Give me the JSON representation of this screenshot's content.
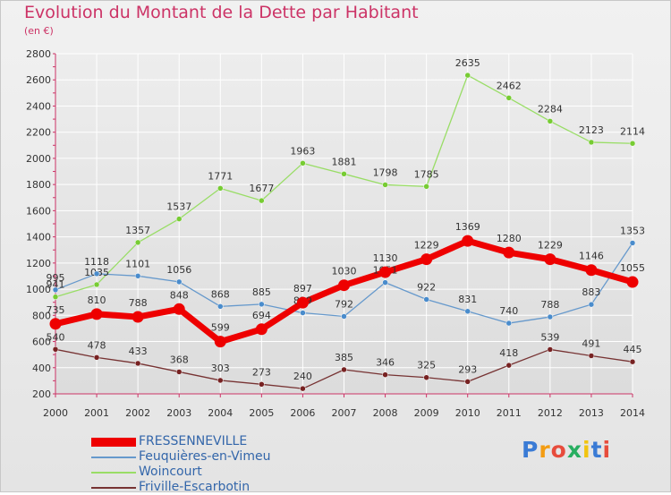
{
  "title": "Evolution du Montant de la Dette par Habitant",
  "subtitle": "(en €)",
  "brand": "Proxiti",
  "colors": {
    "title": "#cc3366",
    "axis": "#cc3366",
    "grid": "#ffffff",
    "plot_bg_top": "#ededed",
    "plot_bg_bottom": "#dcdcdc"
  },
  "chart_data": {
    "type": "line",
    "x": [
      2000,
      2001,
      2002,
      2003,
      2004,
      2005,
      2006,
      2007,
      2008,
      2009,
      2010,
      2011,
      2012,
      2013,
      2014
    ],
    "ylim": [
      200,
      2800
    ],
    "yticks": [
      200,
      400,
      600,
      800,
      1000,
      1200,
      1400,
      1600,
      1800,
      2000,
      2200,
      2400,
      2600,
      2800
    ],
    "grid": true,
    "legend_position": "bottom-left",
    "series": [
      {
        "name": "FRESSENNEVILLE",
        "color": "#ee0000",
        "marker": "#ee0000",
        "values": [
          735,
          810,
          788,
          848,
          599,
          694,
          897,
          1030,
          1130,
          1229,
          1369,
          1280,
          1229,
          1146,
          1055
        ]
      },
      {
        "name": "Feuquières-en-Vimeu",
        "color": "#6699cc",
        "marker": "#4a8ccc",
        "values": [
          995,
          1118,
          1101,
          1056,
          868,
          885,
          819,
          792,
          1051,
          922,
          831,
          740,
          788,
          883,
          1353
        ]
      },
      {
        "name": "Woincourt",
        "color": "#99dd66",
        "marker": "#77cc33",
        "values": [
          941,
          1035,
          1357,
          1537,
          1771,
          1677,
          1963,
          1881,
          1798,
          1785,
          2635,
          2462,
          2284,
          2123,
          2114
        ]
      },
      {
        "name": "Friville-Escarbotin",
        "color": "#773333",
        "marker": "#772222",
        "values": [
          540,
          478,
          433,
          368,
          303,
          273,
          240,
          385,
          346,
          325,
          293,
          418,
          539,
          491,
          445
        ]
      }
    ]
  }
}
